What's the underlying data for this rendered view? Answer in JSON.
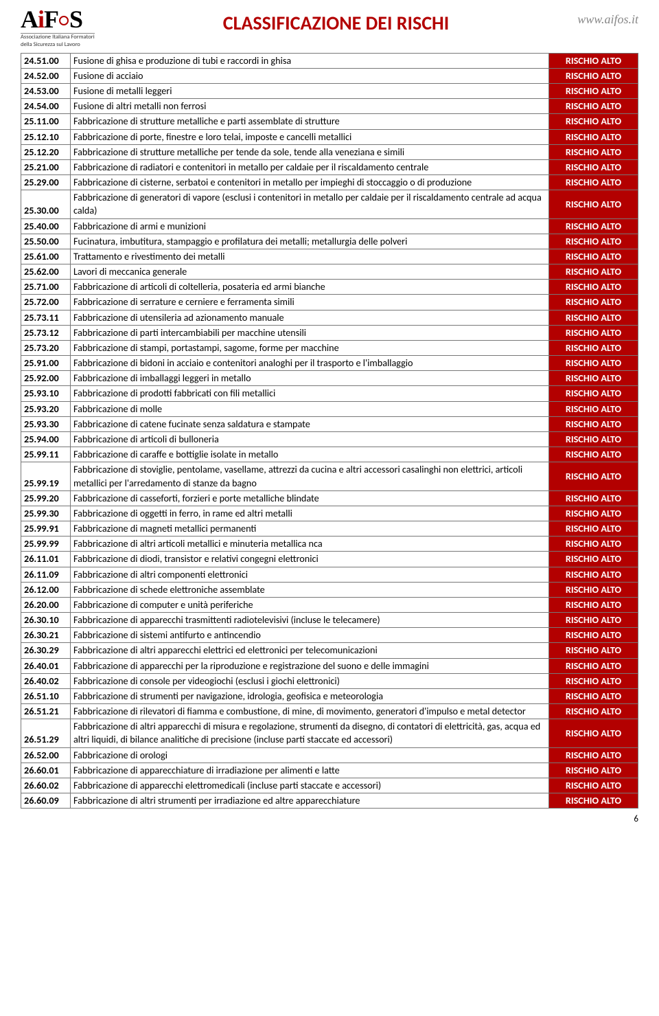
{
  "header": {
    "logo_text": "AiFOS",
    "logo_sub1": "Associazione Italiana Formatori",
    "logo_sub2": "della Sicurezza sul Lavoro",
    "title": "CLASSIFICAZIONE DEI RISCHI",
    "url": "www.aifos.it"
  },
  "risk_label": "RISCHIO ALTO",
  "page_number": "6",
  "rows": [
    {
      "code": "24.51.00",
      "desc": "Fusione di ghisa e produzione di tubi e raccordi in ghisa"
    },
    {
      "code": "24.52.00",
      "desc": "Fusione di acciaio"
    },
    {
      "code": "24.53.00",
      "desc": "Fusione di metalli leggeri"
    },
    {
      "code": "24.54.00",
      "desc": "Fusione di altri metalli non ferrosi"
    },
    {
      "code": "25.11.00",
      "desc": "Fabbricazione di strutture metalliche e parti assemblate di strutture"
    },
    {
      "code": "25.12.10",
      "desc": "Fabbricazione di porte, finestre e loro telai, imposte e cancelli metallici"
    },
    {
      "code": "25.12.20",
      "desc": "Fabbricazione di strutture metalliche per tende da sole, tende alla veneziana e simili"
    },
    {
      "code": "25.21.00",
      "desc": "Fabbricazione di radiatori e contenitori in metallo per caldaie per il riscaldamento centrale"
    },
    {
      "code": "25.29.00",
      "desc": "Fabbricazione di cisterne, serbatoi e contenitori in metallo per impieghi di stoccaggio o di produzione"
    },
    {
      "code": "25.30.00",
      "desc": "Fabbricazione di generatori di vapore (esclusi i contenitori in metallo per caldaie per il riscaldamento centrale ad acqua calda)"
    },
    {
      "code": "25.40.00",
      "desc": "Fabbricazione di armi e munizioni"
    },
    {
      "code": "25.50.00",
      "desc": "Fucinatura, imbutitura, stampaggio e profilatura dei metalli; metallurgia delle polveri"
    },
    {
      "code": "25.61.00",
      "desc": "Trattamento e rivestimento dei metalli"
    },
    {
      "code": "25.62.00",
      "desc": "Lavori di meccanica generale"
    },
    {
      "code": "25.71.00",
      "desc": "Fabbricazione di articoli di coltelleria, posateria ed armi bianche"
    },
    {
      "code": "25.72.00",
      "desc": "Fabbricazione di serrature e cerniere e ferramenta simili"
    },
    {
      "code": "25.73.11",
      "desc": "Fabbricazione di utensileria ad azionamento manuale"
    },
    {
      "code": "25.73.12",
      "desc": "Fabbricazione di parti intercambiabili per macchine utensili"
    },
    {
      "code": "25.73.20",
      "desc": "Fabbricazione di stampi, portastampi, sagome, forme per macchine"
    },
    {
      "code": "25.91.00",
      "desc": "Fabbricazione di bidoni in acciaio e contenitori analoghi per il trasporto e l'imballaggio"
    },
    {
      "code": "25.92.00",
      "desc": "Fabbricazione di imballaggi leggeri in metallo"
    },
    {
      "code": "25.93.10",
      "desc": "Fabbricazione di prodotti fabbricati con fili metallici"
    },
    {
      "code": "25.93.20",
      "desc": "Fabbricazione di molle"
    },
    {
      "code": "25.93.30",
      "desc": "Fabbricazione di catene fucinate senza saldatura e stampate"
    },
    {
      "code": "25.94.00",
      "desc": "Fabbricazione di articoli di bulloneria"
    },
    {
      "code": "25.99.11",
      "desc": "Fabbricazione di caraffe e bottiglie isolate in metallo"
    },
    {
      "code": "25.99.19",
      "desc": "Fabbricazione di stoviglie, pentolame, vasellame, attrezzi da cucina e altri accessori casalinghi non elettrici, articoli metallici per l'arredamento di stanze da bagno"
    },
    {
      "code": "25.99.20",
      "desc": "Fabbricazione di casseforti, forzieri e porte metalliche blindate"
    },
    {
      "code": "25.99.30",
      "desc": "Fabbricazione di oggetti in ferro, in rame ed altri metalli"
    },
    {
      "code": "25.99.91",
      "desc": "Fabbricazione di magneti metallici permanenti"
    },
    {
      "code": "25.99.99",
      "desc": "Fabbricazione di altri articoli metallici e minuteria metallica nca"
    },
    {
      "code": "26.11.01",
      "desc": "Fabbricazione di diodi, transistor e relativi congegni elettronici"
    },
    {
      "code": "26.11.09",
      "desc": "Fabbricazione di altri componenti elettronici"
    },
    {
      "code": "26.12.00",
      "desc": "Fabbricazione di schede elettroniche assemblate"
    },
    {
      "code": "26.20.00",
      "desc": "Fabbricazione di computer e unità periferiche"
    },
    {
      "code": "26.30.10",
      "desc": "Fabbricazione di apparecchi trasmittenti radiotelevisivi (incluse le telecamere)"
    },
    {
      "code": "26.30.21",
      "desc": "Fabbricazione di sistemi antifurto e antincendio"
    },
    {
      "code": "26.30.29",
      "desc": "Fabbricazione di altri apparecchi elettrici ed elettronici per telecomunicazioni"
    },
    {
      "code": "26.40.01",
      "desc": "Fabbricazione di apparecchi per la riproduzione e registrazione del suono e delle immagini"
    },
    {
      "code": "26.40.02",
      "desc": "Fabbricazione di console per videogiochi (esclusi i giochi elettronici)"
    },
    {
      "code": "26.51.10",
      "desc": "Fabbricazione di strumenti per navigazione, idrologia, geofisica e meteorologia"
    },
    {
      "code": "26.51.21",
      "desc": "Fabbricazione di rilevatori di fiamma e combustione, di mine, di movimento, generatori d'impulso e metal detector"
    },
    {
      "code": "26.51.29",
      "desc": "Fabbricazione di altri apparecchi di misura e regolazione, strumenti da disegno, di contatori di elettricità, gas, acqua ed altri liquidi, di bilance analitiche di precisione (incluse parti staccate ed accessori)"
    },
    {
      "code": "26.52.00",
      "desc": "Fabbricazione di orologi"
    },
    {
      "code": "26.60.01",
      "desc": "Fabbricazione di apparecchiature di irradiazione per alimenti e latte"
    },
    {
      "code": "26.60.02",
      "desc": "Fabbricazione di apparecchi elettromedicali (incluse parti staccate e accessori)"
    },
    {
      "code": "26.60.09",
      "desc": "Fabbricazione di altri strumenti per irradiazione ed altre apparecchiature"
    }
  ]
}
